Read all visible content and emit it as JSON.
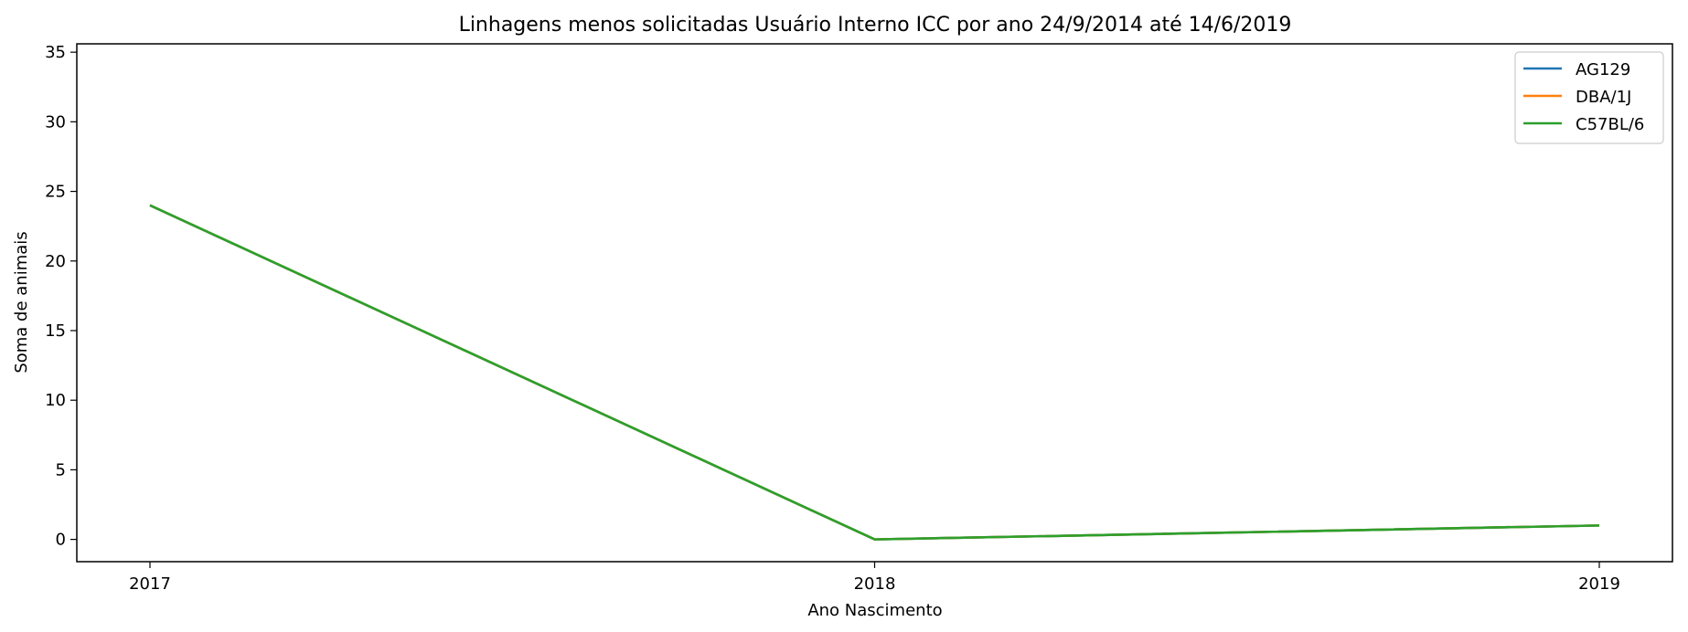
{
  "chart_data": {
    "type": "line",
    "title": "Linhagens menos solicitadas Usuário Interno ICC por ano 24/9/2014 até 14/6/2019",
    "xlabel": "Ano Nascimento",
    "ylabel": "Soma de animais",
    "x": [
      "2017",
      "2018",
      "2019"
    ],
    "ylim": [
      -1.6,
      35.6
    ],
    "yticks": [
      0,
      5,
      10,
      15,
      20,
      25,
      30,
      35
    ],
    "grid": false,
    "legend_position": "top-right",
    "series": [
      {
        "name": "AG129",
        "color": "#1f77b4",
        "values": [
          24,
          0,
          1
        ]
      },
      {
        "name": "DBA/1J",
        "color": "#ff7f0e",
        "values": [
          24,
          0,
          1
        ]
      },
      {
        "name": "C57BL/6",
        "color": "#2ca02c",
        "values": [
          24,
          0,
          1
        ]
      }
    ]
  }
}
